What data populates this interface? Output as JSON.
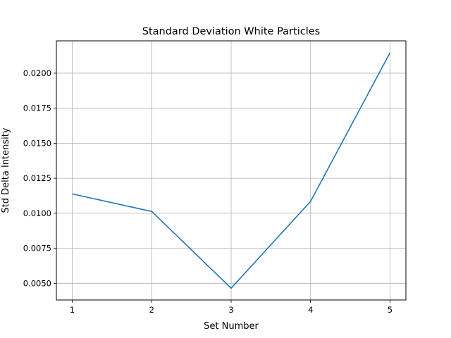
{
  "chart_data": {
    "type": "line",
    "title": "Standard Deviation White Particles",
    "xlabel": "Set Number",
    "ylabel": "Std Delta Intensity",
    "x": [
      1,
      2,
      3,
      4,
      5
    ],
    "series": [
      {
        "values": [
          0.01138,
          0.01013,
          0.00465,
          0.01085,
          0.02147
        ]
      }
    ],
    "xlim": [
      0.8,
      5.2
    ],
    "ylim": [
      0.00381,
      0.02231
    ],
    "xticks": [
      1,
      2,
      3,
      4,
      5
    ],
    "xtick_labels": [
      "1",
      "2",
      "3",
      "4",
      "5"
    ],
    "yticks": [
      0.005,
      0.0075,
      0.01,
      0.0125,
      0.015,
      0.0175,
      0.02
    ],
    "ytick_labels": [
      "0.0050",
      "0.0075",
      "0.0100",
      "0.0125",
      "0.0150",
      "0.0175",
      "0.0200"
    ],
    "grid": true,
    "line_color": "#1f77b4",
    "grid_color": "#b0b0b0"
  }
}
